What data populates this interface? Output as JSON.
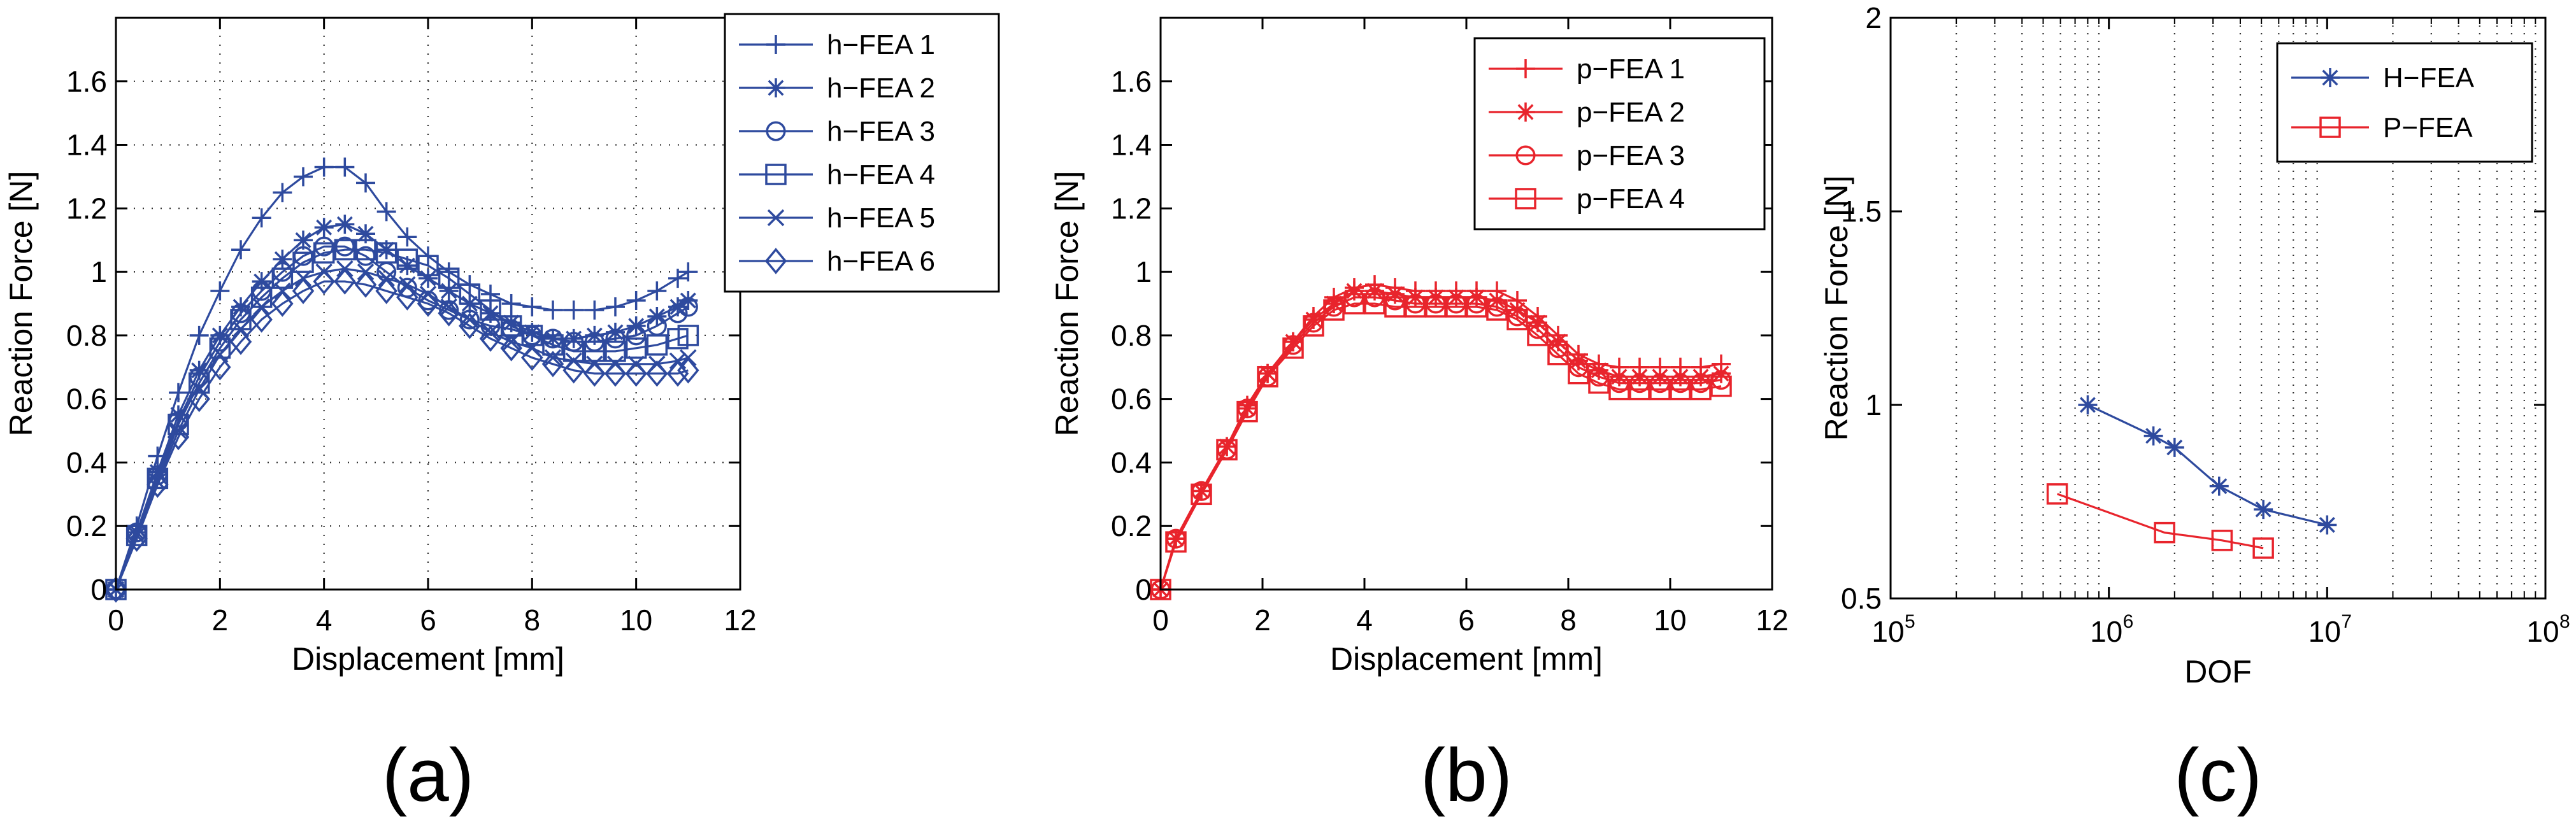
{
  "chart_data": [
    {
      "type": "line",
      "panel_label": "(a)",
      "xlabel": "Displacement [mm]",
      "ylabel": "Reaction Force [N]",
      "xlim": [
        0,
        12
      ],
      "ylim": [
        0,
        1.8
      ],
      "xticks": [
        0,
        2,
        4,
        6,
        8,
        10,
        12
      ],
      "yticks": [
        0,
        0.2,
        0.4,
        0.6,
        0.8,
        1,
        1.2,
        1.4,
        1.6
      ],
      "grid": true,
      "legend_position": "top-right-outside",
      "color": "#2e4a9e",
      "series": [
        {
          "name": "h−FEA 1",
          "marker": "plus",
          "x": [
            0,
            0.4,
            0.8,
            1.2,
            1.6,
            2.0,
            2.4,
            2.8,
            3.2,
            3.6,
            4.0,
            4.4,
            4.8,
            5.2,
            5.6,
            6.0,
            6.4,
            6.8,
            7.2,
            7.6,
            8.0,
            8.4,
            8.8,
            9.2,
            9.6,
            10.0,
            10.4,
            10.8,
            11.0
          ],
          "y": [
            0,
            0.2,
            0.42,
            0.62,
            0.8,
            0.94,
            1.07,
            1.17,
            1.25,
            1.3,
            1.33,
            1.33,
            1.28,
            1.19,
            1.11,
            1.05,
            1.0,
            0.96,
            0.93,
            0.9,
            0.89,
            0.88,
            0.88,
            0.88,
            0.89,
            0.91,
            0.94,
            0.98,
            1.0
          ]
        },
        {
          "name": "h−FEA 2",
          "marker": "star",
          "x": [
            0,
            0.4,
            0.8,
            1.2,
            1.6,
            2.0,
            2.4,
            2.8,
            3.2,
            3.6,
            4.0,
            4.4,
            4.8,
            5.2,
            5.6,
            6.0,
            6.4,
            6.8,
            7.2,
            7.6,
            8.0,
            8.4,
            8.8,
            9.2,
            9.6,
            10.0,
            10.4,
            10.8,
            11.0
          ],
          "y": [
            0,
            0.18,
            0.37,
            0.55,
            0.69,
            0.8,
            0.89,
            0.97,
            1.04,
            1.1,
            1.14,
            1.15,
            1.12,
            1.07,
            1.02,
            0.98,
            0.94,
            0.9,
            0.87,
            0.84,
            0.81,
            0.79,
            0.79,
            0.8,
            0.81,
            0.83,
            0.86,
            0.89,
            0.91
          ]
        },
        {
          "name": "h−FEA 3",
          "marker": "circle",
          "x": [
            0,
            0.4,
            0.8,
            1.2,
            1.6,
            2.0,
            2.4,
            2.8,
            3.2,
            3.6,
            4.0,
            4.4,
            4.8,
            5.2,
            5.6,
            6.0,
            6.4,
            6.8,
            7.2,
            7.6,
            8.0,
            8.4,
            8.8,
            9.2,
            9.6,
            10.0,
            10.4,
            10.8,
            11.0
          ],
          "y": [
            0,
            0.18,
            0.36,
            0.53,
            0.67,
            0.78,
            0.87,
            0.94,
            1.0,
            1.05,
            1.08,
            1.08,
            1.05,
            1.0,
            0.95,
            0.91,
            0.88,
            0.85,
            0.83,
            0.82,
            0.8,
            0.79,
            0.78,
            0.78,
            0.79,
            0.8,
            0.83,
            0.87,
            0.89
          ]
        },
        {
          "name": "h−FEA 4",
          "marker": "square",
          "x": [
            0,
            0.4,
            0.8,
            1.2,
            1.6,
            2.0,
            2.4,
            2.8,
            3.2,
            3.6,
            4.0,
            4.4,
            4.8,
            5.2,
            5.6,
            6.0,
            6.4,
            6.8,
            7.2,
            7.6,
            8.0,
            8.4,
            8.8,
            9.2,
            9.6,
            10.0,
            10.4,
            10.8,
            11.0
          ],
          "y": [
            0,
            0.17,
            0.35,
            0.52,
            0.65,
            0.76,
            0.85,
            0.92,
            0.98,
            1.03,
            1.06,
            1.07,
            1.07,
            1.06,
            1.04,
            1.02,
            0.98,
            0.93,
            0.88,
            0.83,
            0.8,
            0.77,
            0.75,
            0.75,
            0.75,
            0.76,
            0.77,
            0.79,
            0.8
          ]
        },
        {
          "name": "h−FEA 5",
          "marker": "x",
          "x": [
            0,
            0.4,
            0.8,
            1.2,
            1.6,
            2.0,
            2.4,
            2.8,
            3.2,
            3.6,
            4.0,
            4.4,
            4.8,
            5.2,
            5.6,
            6.0,
            6.4,
            6.8,
            7.2,
            7.6,
            8.0,
            8.4,
            8.8,
            9.2,
            9.6,
            10.0,
            10.4,
            10.8,
            11.0
          ],
          "y": [
            0,
            0.17,
            0.34,
            0.5,
            0.63,
            0.74,
            0.82,
            0.89,
            0.94,
            0.98,
            1.0,
            1.01,
            1.0,
            0.98,
            0.96,
            0.93,
            0.89,
            0.85,
            0.81,
            0.78,
            0.76,
            0.73,
            0.72,
            0.71,
            0.71,
            0.71,
            0.71,
            0.72,
            0.73
          ]
        },
        {
          "name": "h−FEA 6",
          "marker": "diamond",
          "x": [
            0,
            0.4,
            0.8,
            1.2,
            1.6,
            2.0,
            2.4,
            2.8,
            3.2,
            3.6,
            4.0,
            4.4,
            4.8,
            5.2,
            5.6,
            6.0,
            6.4,
            6.8,
            7.2,
            7.6,
            8.0,
            8.4,
            8.8,
            9.2,
            9.6,
            10.0,
            10.4,
            10.8,
            11.0
          ],
          "y": [
            0,
            0.16,
            0.33,
            0.48,
            0.6,
            0.7,
            0.78,
            0.85,
            0.9,
            0.94,
            0.97,
            0.97,
            0.96,
            0.94,
            0.92,
            0.9,
            0.87,
            0.83,
            0.79,
            0.76,
            0.73,
            0.71,
            0.69,
            0.68,
            0.68,
            0.68,
            0.68,
            0.68,
            0.69
          ]
        }
      ]
    },
    {
      "type": "line",
      "panel_label": "(b)",
      "xlabel": "Displacement [mm]",
      "ylabel": "Reaction Force [N]",
      "xlim": [
        0,
        12
      ],
      "ylim": [
        0,
        1.8
      ],
      "xticks": [
        0,
        2,
        4,
        6,
        8,
        10,
        12
      ],
      "yticks": [
        0,
        0.2,
        0.4,
        0.6,
        0.8,
        1,
        1.2,
        1.4,
        1.6
      ],
      "grid": false,
      "legend_position": "top-right",
      "color": "#e8242c",
      "series": [
        {
          "name": "p−FEA 1",
          "marker": "plus",
          "x": [
            0,
            0.3,
            0.8,
            1.3,
            1.7,
            2.1,
            2.6,
            3.0,
            3.4,
            3.8,
            4.2,
            4.6,
            5.0,
            5.4,
            5.8,
            6.2,
            6.6,
            7.0,
            7.4,
            7.8,
            8.2,
            8.6,
            9.0,
            9.4,
            9.8,
            10.2,
            10.6,
            11.0
          ],
          "y": [
            0,
            0.16,
            0.31,
            0.45,
            0.58,
            0.68,
            0.78,
            0.86,
            0.92,
            0.95,
            0.96,
            0.95,
            0.94,
            0.94,
            0.94,
            0.94,
            0.94,
            0.91,
            0.86,
            0.8,
            0.74,
            0.71,
            0.7,
            0.7,
            0.7,
            0.7,
            0.7,
            0.71
          ]
        },
        {
          "name": "p−FEA 2",
          "marker": "star",
          "x": [
            0,
            0.3,
            0.8,
            1.3,
            1.7,
            2.1,
            2.6,
            3.0,
            3.4,
            3.8,
            4.2,
            4.6,
            5.0,
            5.4,
            5.8,
            6.2,
            6.6,
            7.0,
            7.4,
            7.8,
            8.2,
            8.6,
            9.0,
            9.4,
            9.8,
            10.2,
            10.6,
            11.0
          ],
          "y": [
            0,
            0.16,
            0.31,
            0.45,
            0.57,
            0.68,
            0.78,
            0.85,
            0.9,
            0.94,
            0.94,
            0.93,
            0.92,
            0.92,
            0.92,
            0.92,
            0.91,
            0.88,
            0.84,
            0.78,
            0.72,
            0.69,
            0.67,
            0.67,
            0.67,
            0.67,
            0.67,
            0.68
          ]
        },
        {
          "name": "p−FEA 3",
          "marker": "circle",
          "x": [
            0,
            0.3,
            0.8,
            1.3,
            1.7,
            2.1,
            2.6,
            3.0,
            3.4,
            3.8,
            4.2,
            4.6,
            5.0,
            5.4,
            5.8,
            6.2,
            6.6,
            7.0,
            7.4,
            7.8,
            8.2,
            8.6,
            9.0,
            9.4,
            9.8,
            10.2,
            10.6,
            11.0
          ],
          "y": [
            0,
            0.16,
            0.31,
            0.44,
            0.57,
            0.67,
            0.77,
            0.84,
            0.89,
            0.92,
            0.92,
            0.91,
            0.9,
            0.9,
            0.9,
            0.9,
            0.89,
            0.86,
            0.82,
            0.76,
            0.7,
            0.67,
            0.65,
            0.65,
            0.65,
            0.65,
            0.65,
            0.66
          ]
        },
        {
          "name": "p−FEA 4",
          "marker": "square",
          "x": [
            0,
            0.3,
            0.8,
            1.3,
            1.7,
            2.1,
            2.6,
            3.0,
            3.4,
            3.8,
            4.2,
            4.6,
            5.0,
            5.4,
            5.8,
            6.2,
            6.6,
            7.0,
            7.4,
            7.8,
            8.2,
            8.6,
            9.0,
            9.4,
            9.8,
            10.2,
            10.6,
            11.0
          ],
          "y": [
            0,
            0.15,
            0.3,
            0.44,
            0.56,
            0.67,
            0.76,
            0.83,
            0.88,
            0.9,
            0.9,
            0.89,
            0.89,
            0.89,
            0.89,
            0.89,
            0.88,
            0.85,
            0.8,
            0.74,
            0.68,
            0.65,
            0.63,
            0.63,
            0.63,
            0.63,
            0.63,
            0.64
          ]
        }
      ]
    },
    {
      "type": "line",
      "panel_label": "(c)",
      "xlabel": "DOF",
      "ylabel": "Reaction Force [N]",
      "xscale": "log",
      "xlim": [
        100000,
        100000000
      ],
      "ylim": [
        0.5,
        2
      ],
      "xticks": [
        100000,
        1000000,
        10000000,
        100000000
      ],
      "xtick_labels": [
        {
          "base": "10",
          "exp": "5"
        },
        {
          "base": "10",
          "exp": "6"
        },
        {
          "base": "10",
          "exp": "7"
        },
        {
          "base": "10",
          "exp": "8"
        }
      ],
      "yticks": [
        0.5,
        1,
        1.5,
        2
      ],
      "ytick_labels": [
        "0.5",
        "1",
        "1.5",
        "2"
      ],
      "grid": "dotted-minor",
      "legend_position": "top-right",
      "series": [
        {
          "name": "H−FEA",
          "marker": "star",
          "color": "#2e4a9e",
          "x": [
            800000,
            1600000,
            2000000,
            3200000,
            5100000,
            10000000
          ],
          "y": [
            1.0,
            0.92,
            0.89,
            0.79,
            0.73,
            0.69
          ]
        },
        {
          "name": "P−FEA",
          "marker": "square",
          "color": "#e8242c",
          "x": [
            580000,
            1800000,
            3300000,
            5100000
          ],
          "y": [
            0.77,
            0.67,
            0.65,
            0.63
          ]
        }
      ]
    }
  ]
}
